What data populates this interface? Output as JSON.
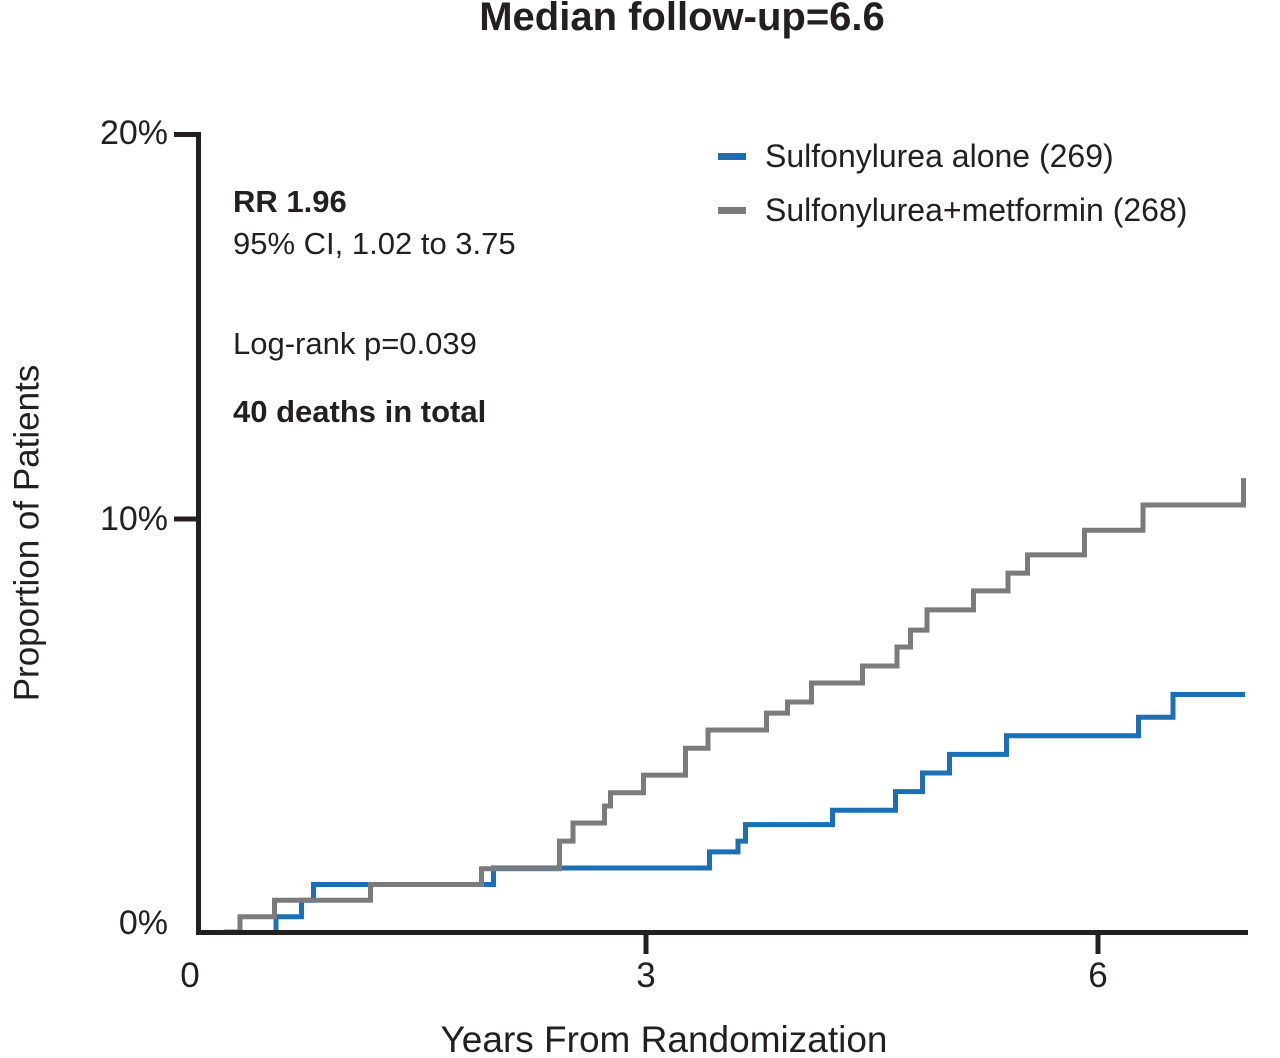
{
  "title": "Median follow-up=6.6",
  "annotations": {
    "rr": "RR 1.96",
    "ci": "95% CI, 1.02 to 3.75",
    "logrank": "Log-rank p=0.039",
    "deaths": "40 deaths in total"
  },
  "legend": [
    {
      "label": "Sulfonylurea alone (269)",
      "color": "#1c6fb4"
    },
    {
      "label": "Sulfonylurea+metformin (268)",
      "color": "#7b7b7b"
    }
  ],
  "axes": {
    "xlabel": "Years From Randomization",
    "ylabel": "Proportion of Patients",
    "y_tick_labels": [
      "20%",
      "10%",
      "0%"
    ],
    "x_tick_labels": [
      "0",
      "3",
      "6"
    ],
    "axis_color": "#231f20"
  },
  "chart_data": {
    "type": "line",
    "subtype": "kaplan-meier-cumulative-incidence-steps",
    "title": "Median follow-up=6.6",
    "xlabel": "Years From Randomization",
    "ylabel": "Proportion of Patients",
    "xlim": [
      0,
      7
    ],
    "ylim": [
      0,
      20
    ],
    "x_ticks": [
      0,
      3,
      6
    ],
    "y_ticks_pct": [
      0,
      10,
      20
    ],
    "grid": false,
    "legend_position": "top-right-inside",
    "stats": {
      "rr": 1.96,
      "ci_low": 1.02,
      "ci_high": 3.75,
      "logrank_p": 0.039,
      "total_deaths": 40
    },
    "series": [
      {
        "name": "Sulfonylurea alone (269)",
        "n": 269,
        "color": "#1c6fb4",
        "end_year": 6.98,
        "points": [
          [
            0.52,
            0
          ],
          [
            0.52,
            0.37
          ],
          [
            0.69,
            0.77
          ],
          [
            0.77,
            1.15
          ],
          [
            1.97,
            1.55
          ],
          [
            3.41,
            1.94
          ],
          [
            3.6,
            2.2
          ],
          [
            3.65,
            2.6
          ],
          [
            4.23,
            2.95
          ],
          [
            4.65,
            3.4
          ],
          [
            4.83,
            3.85
          ],
          [
            5.01,
            4.3
          ],
          [
            5.39,
            4.75
          ],
          [
            6.27,
            5.2
          ],
          [
            6.5,
            5.75
          ]
        ]
      },
      {
        "name": "Sulfonylurea+metformin (268)",
        "n": 268,
        "color": "#7b7b7b",
        "end_year": 6.97,
        "points": [
          [
            0.17,
            0
          ],
          [
            0.28,
            0.37
          ],
          [
            0.51,
            0.77
          ],
          [
            1.15,
            1.15
          ],
          [
            1.89,
            1.53
          ],
          [
            2.41,
            2.2
          ],
          [
            2.5,
            2.64
          ],
          [
            2.71,
            3.05
          ],
          [
            2.75,
            3.37
          ],
          [
            2.97,
            3.8
          ],
          [
            3.25,
            4.45
          ],
          [
            3.4,
            4.89
          ],
          [
            3.79,
            5.3
          ],
          [
            3.93,
            5.57
          ],
          [
            4.09,
            6.03
          ],
          [
            4.43,
            6.44
          ],
          [
            4.66,
            6.9
          ],
          [
            4.75,
            7.31
          ],
          [
            4.86,
            7.8
          ],
          [
            5.17,
            8.26
          ],
          [
            5.4,
            8.69
          ],
          [
            5.53,
            9.13
          ],
          [
            5.91,
            9.73
          ],
          [
            6.3,
            10.34
          ],
          [
            6.97,
            10.99
          ]
        ]
      }
    ]
  }
}
